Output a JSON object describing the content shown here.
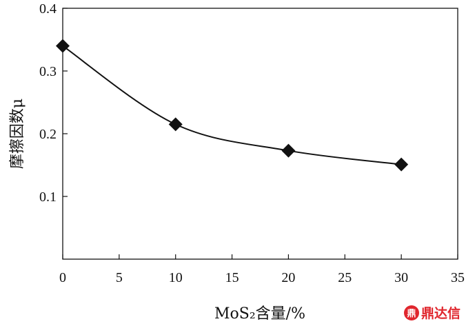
{
  "chart_data": {
    "type": "line",
    "x": [
      0,
      10,
      20,
      30
    ],
    "series": [
      {
        "values": [
          0.34,
          0.215,
          0.173,
          0.151
        ]
      }
    ],
    "xlim": [
      0,
      35
    ],
    "ylim": [
      0,
      0.4
    ],
    "xticks": [
      "0",
      "5",
      "10",
      "15",
      "20",
      "25",
      "30",
      "35"
    ],
    "yticks": [
      "0.1",
      "0.2",
      "0.3",
      "0.4"
    ],
    "xlabel": "MoS₂含量/%",
    "ylabel": "摩擦因数μ",
    "marker": "diamond",
    "grid": false,
    "legend": "none",
    "line_color": "#111111"
  },
  "watermark": {
    "text": "鼎达信",
    "logo": "鼎",
    "color": "#e0262d"
  }
}
